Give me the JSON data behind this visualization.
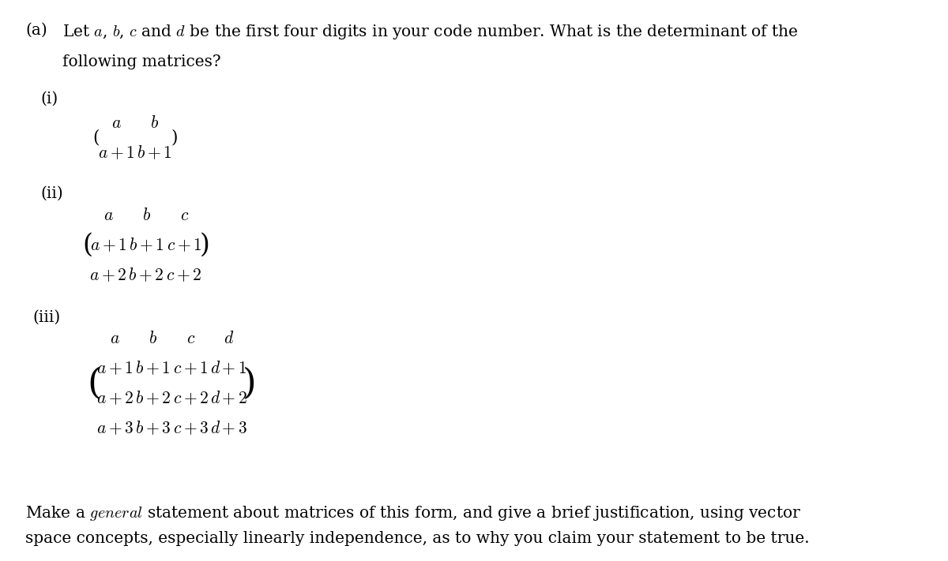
{
  "background_color": "#ffffff",
  "text_color": "#000000",
  "fig_width": 12.0,
  "fig_height": 7.11,
  "label_a": "(a)",
  "intro_text": "Let $a$, $b$, $c$ and $d$ be the first four digits in your code number. What is the determinant of the",
  "intro_text2": "following matrices?",
  "label_i": "(i)",
  "label_ii": "(ii)",
  "label_iii": "(iii)",
  "matrix_i": [
    [
      "a",
      "b"
    ],
    [
      "a+1",
      "b+1"
    ]
  ],
  "matrix_ii": [
    [
      "a",
      "b",
      "c"
    ],
    [
      "a+1",
      "b+1",
      "c+1"
    ],
    [
      "a+2",
      "b+2",
      "c+2"
    ]
  ],
  "matrix_iii": [
    [
      "a",
      "b",
      "c",
      "d"
    ],
    [
      "a+1",
      "b+1",
      "c+1",
      "d+1"
    ],
    [
      "a+2",
      "b+2",
      "c+2",
      "d+2"
    ],
    [
      "a+3",
      "b+3",
      "c+3",
      "d+3"
    ]
  ],
  "footer_text": "Make a $\\it{general}$ statement about matrices of this form, and give a brief justification, using vector",
  "footer_text2": "space concepts, especially linearly independence, as to why you claim your statement to be true.",
  "main_fontsize": 14.5,
  "matrix_fontsize": 15.5,
  "label_fontsize": 14.5
}
